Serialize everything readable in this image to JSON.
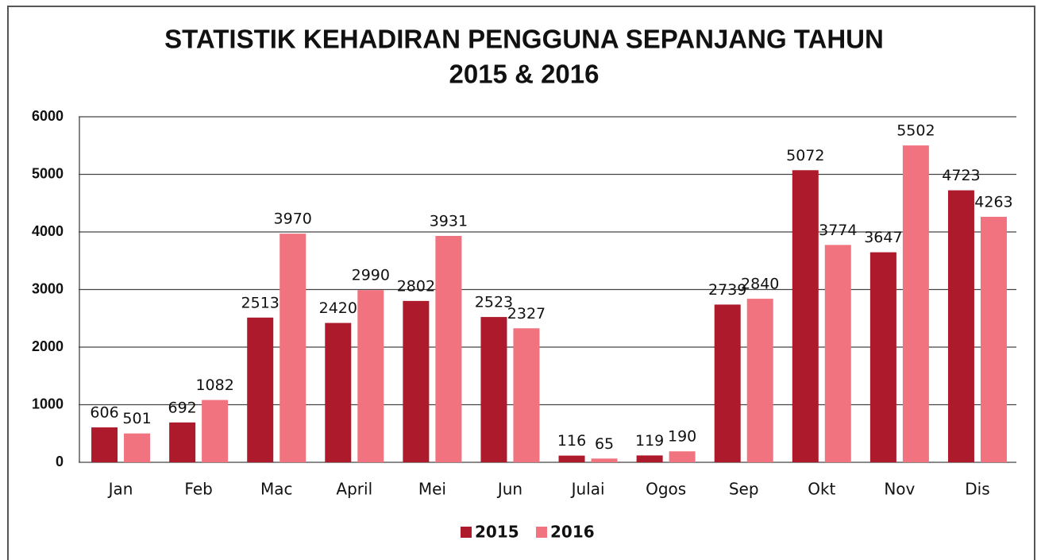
{
  "chart_data": {
    "type": "bar",
    "title": [
      "STATISTIK KEHADIRAN PENGGUNA SEPANJANG TAHUN",
      "2015 & 2016"
    ],
    "categories": [
      "Jan",
      "Feb",
      "Mac",
      "April",
      "Mei",
      "Jun",
      "Julai",
      "Ogos",
      "Sep",
      "Okt",
      "Nov",
      "Dis"
    ],
    "series": [
      {
        "name": "2015",
        "color": "#ad1a2c",
        "values": [
          606,
          692,
          2513,
          2420,
          2802,
          2523,
          116,
          119,
          2739,
          5072,
          3647,
          4723
        ]
      },
      {
        "name": "2016",
        "color": "#f0737f",
        "values": [
          501,
          1082,
          3970,
          2990,
          3931,
          2327,
          65,
          190,
          2840,
          3774,
          5502,
          4263
        ]
      }
    ],
    "ylim": [
      0,
      6000
    ],
    "yticks": [
      0,
      1000,
      2000,
      3000,
      4000,
      5000,
      6000
    ],
    "grid": true,
    "legend": "bottom"
  }
}
